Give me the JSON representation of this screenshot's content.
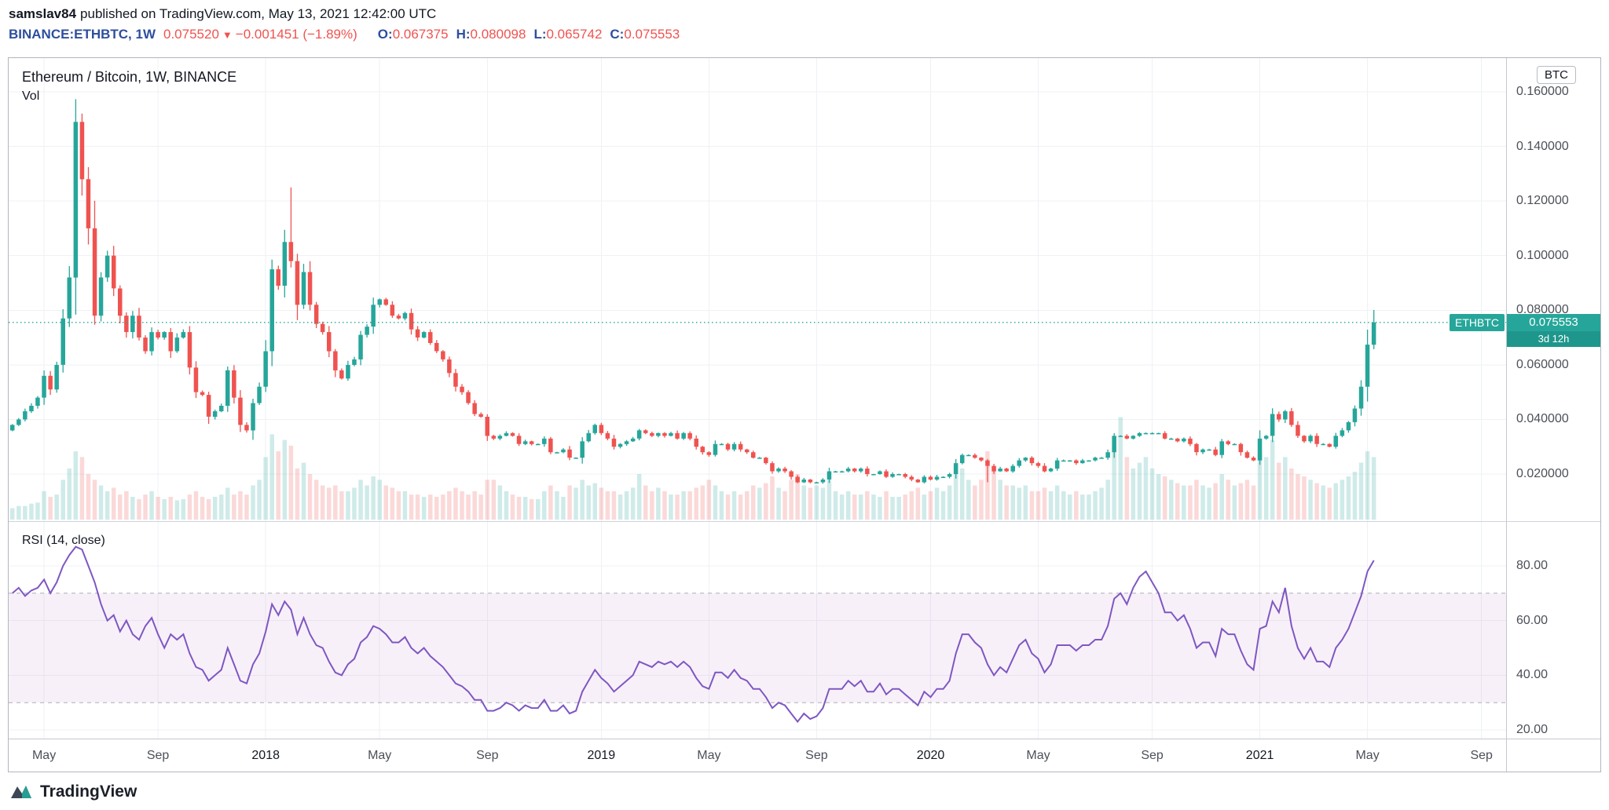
{
  "header": {
    "username": "samslav84",
    "published": "published on TradingView.com, May 13, 2021 12:42:00 UTC",
    "symbol": "BINANCE:ETHBTC, 1W",
    "last_price": "0.075520",
    "direction_icon": "▼",
    "change": "−0.001451 (−1.89%)",
    "ohlc": [
      {
        "label": "O:",
        "value": "0.067375"
      },
      {
        "label": "H:",
        "value": "0.080098"
      },
      {
        "label": "L:",
        "value": "0.065742"
      },
      {
        "label": "C:",
        "value": "0.075553"
      }
    ]
  },
  "chart": {
    "title": "Ethereum / Bitcoin, 1W, BINANCE",
    "vol_label": "Vol",
    "currency_badge": "BTC",
    "rsi_label": "RSI (14, close)",
    "price_flag": {
      "symbol": "ETHBTC",
      "price": "0.075553",
      "countdown": "3d 12h"
    }
  },
  "footer": {
    "brand": "TradingView"
  },
  "colors": {
    "up": "#26a69a",
    "down": "#ef5350",
    "vol_up": "rgba(38,166,154,0.22)",
    "vol_down": "rgba(239,83,80,0.22)",
    "grid": "#eef1f6",
    "rsi": "#7e57c2",
    "rsi_band": "rgba(156,39,176,0.07)",
    "rsi_band_border": "rgba(120,123,134,0.6)",
    "symbol_text": "#2e4e9e",
    "negative_text": "#ef5350"
  },
  "chart_data": {
    "type": "candlestick+volume+rsi",
    "title": "Ethereum / Bitcoin, 1W, BINANCE",
    "symbol": "BINANCE:ETHBTC",
    "timeframe": "1W",
    "start_date": "2017-04-03",
    "end_date": "2021-05-10",
    "current_price": 0.075553,
    "price_axis_ticks": [
      0.16,
      0.14,
      0.12,
      0.1,
      0.08,
      0.06,
      0.04,
      0.02
    ],
    "price_axis_labels": [
      "0.160000",
      "0.140000",
      "0.120000",
      "0.100000",
      "0.080000",
      "0.060000",
      "0.040000",
      "0.020000"
    ],
    "rsi_axis_ticks": [
      80,
      60,
      40,
      20
    ],
    "rsi_axis_labels": [
      "80.00",
      "60.00",
      "40.00",
      "20.00"
    ],
    "rsi_band": [
      30,
      70
    ],
    "ylim": [
      0.003,
      0.1635
    ],
    "rsi_ylim": [
      15,
      95
    ],
    "time_ticks": [
      {
        "label": "May",
        "week": 5
      },
      {
        "label": "Sep",
        "week": 23
      },
      {
        "label": "2018",
        "week": 40,
        "year": true
      },
      {
        "label": "May",
        "week": 58
      },
      {
        "label": "Sep",
        "week": 75
      },
      {
        "label": "2019",
        "week": 93,
        "year": true
      },
      {
        "label": "May",
        "week": 110
      },
      {
        "label": "Sep",
        "week": 127
      },
      {
        "label": "2020",
        "week": 145,
        "year": true
      },
      {
        "label": "May",
        "week": 162
      },
      {
        "label": "Sep",
        "week": 180
      },
      {
        "label": "2021",
        "week": 197,
        "year": true
      },
      {
        "label": "May",
        "week": 214
      },
      {
        "label": "Sep",
        "week": 232
      }
    ],
    "first_open": 0.036,
    "closes": [
      0.038,
      0.04,
      0.043,
      0.045,
      0.048,
      0.056,
      0.051,
      0.06,
      0.077,
      0.092,
      0.149,
      0.128,
      0.11,
      0.078,
      0.092,
      0.1,
      0.088,
      0.078,
      0.072,
      0.078,
      0.07,
      0.065,
      0.072,
      0.07,
      0.072,
      0.065,
      0.07,
      0.072,
      0.059,
      0.05,
      0.049,
      0.041,
      0.043,
      0.045,
      0.058,
      0.048,
      0.038,
      0.036,
      0.046,
      0.052,
      0.065,
      0.095,
      0.089,
      0.105,
      0.098,
      0.082,
      0.094,
      0.082,
      0.075,
      0.072,
      0.065,
      0.058,
      0.055,
      0.06,
      0.062,
      0.071,
      0.074,
      0.082,
      0.084,
      0.082,
      0.078,
      0.077,
      0.079,
      0.073,
      0.07,
      0.072,
      0.068,
      0.065,
      0.062,
      0.057,
      0.052,
      0.05,
      0.046,
      0.042,
      0.041,
      0.034,
      0.033,
      0.034,
      0.035,
      0.034,
      0.031,
      0.032,
      0.031,
      0.031,
      0.033,
      0.028,
      0.028,
      0.029,
      0.026,
      0.026,
      0.032,
      0.035,
      0.038,
      0.035,
      0.033,
      0.03,
      0.031,
      0.032,
      0.033,
      0.036,
      0.035,
      0.034,
      0.035,
      0.034,
      0.035,
      0.033,
      0.035,
      0.033,
      0.03,
      0.028,
      0.027,
      0.031,
      0.031,
      0.029,
      0.031,
      0.029,
      0.028,
      0.026,
      0.026,
      0.024,
      0.021,
      0.022,
      0.021,
      0.019,
      0.017,
      0.018,
      0.017,
      0.017,
      0.018,
      0.021,
      0.021,
      0.021,
      0.022,
      0.021,
      0.022,
      0.02,
      0.02,
      0.021,
      0.019,
      0.02,
      0.02,
      0.019,
      0.018,
      0.017,
      0.019,
      0.018,
      0.019,
      0.019,
      0.02,
      0.024,
      0.027,
      0.027,
      0.026,
      0.025,
      0.023,
      0.021,
      0.022,
      0.021,
      0.023,
      0.025,
      0.026,
      0.024,
      0.023,
      0.021,
      0.022,
      0.025,
      0.025,
      0.025,
      0.024,
      0.025,
      0.025,
      0.026,
      0.026,
      0.028,
      0.034,
      0.034,
      0.033,
      0.034,
      0.035,
      0.035,
      0.035,
      0.035,
      0.033,
      0.033,
      0.032,
      0.033,
      0.031,
      0.028,
      0.029,
      0.029,
      0.027,
      0.032,
      0.031,
      0.031,
      0.028,
      0.026,
      0.025,
      0.033,
      0.034,
      0.042,
      0.04,
      0.043,
      0.038,
      0.034,
      0.032,
      0.034,
      0.031,
      0.031,
      0.03,
      0.034,
      0.036,
      0.039,
      0.044,
      0.052,
      0.0674,
      0.075553
    ],
    "wick_overrides": {
      "10": {
        "h": 0.1573
      },
      "11": {
        "h": 0.152
      },
      "44": {
        "h": 0.125
      },
      "154": {
        "l": 0.017
      },
      "215": {
        "h": 0.080098,
        "l": 0.065742
      }
    },
    "volumes": [
      10,
      12,
      12,
      14,
      15,
      25,
      20,
      22,
      35,
      45,
      60,
      55,
      40,
      35,
      30,
      25,
      28,
      22,
      25,
      20,
      18,
      22,
      25,
      20,
      18,
      20,
      17,
      18,
      22,
      25,
      20,
      18,
      20,
      22,
      28,
      22,
      25,
      22,
      30,
      35,
      55,
      75,
      60,
      70,
      65,
      45,
      50,
      40,
      35,
      30,
      28,
      30,
      25,
      25,
      28,
      35,
      30,
      38,
      35,
      30,
      28,
      25,
      25,
      22,
      22,
      20,
      22,
      20,
      22,
      25,
      28,
      25,
      22,
      25,
      22,
      35,
      35,
      30,
      25,
      22,
      20,
      20,
      18,
      18,
      25,
      30,
      25,
      20,
      30,
      28,
      35,
      30,
      32,
      28,
      25,
      25,
      22,
      25,
      28,
      40,
      30,
      25,
      28,
      25,
      22,
      22,
      25,
      25,
      28,
      30,
      35,
      30,
      25,
      22,
      25,
      22,
      25,
      30,
      28,
      32,
      38,
      28,
      25,
      35,
      40,
      30,
      28,
      30,
      28,
      35,
      25,
      22,
      25,
      22,
      22,
      25,
      22,
      20,
      25,
      20,
      20,
      22,
      25,
      28,
      22,
      25,
      28,
      25,
      30,
      40,
      45,
      35,
      30,
      35,
      60,
      45,
      35,
      30,
      30,
      28,
      30,
      25,
      25,
      28,
      25,
      30,
      25,
      22,
      25,
      22,
      22,
      25,
      28,
      35,
      65,
      90,
      55,
      45,
      50,
      55,
      45,
      40,
      38,
      35,
      32,
      30,
      30,
      35,
      30,
      28,
      32,
      40,
      35,
      30,
      32,
      35,
      30,
      60,
      55,
      70,
      50,
      55,
      45,
      40,
      38,
      35,
      32,
      30,
      28,
      32,
      35,
      38,
      42,
      50,
      60,
      55
    ],
    "rsi": [
      70,
      72,
      69,
      71,
      72,
      75,
      70,
      74,
      80,
      84,
      87,
      86,
      80,
      74,
      66,
      60,
      62,
      56,
      60,
      55,
      53,
      58,
      61,
      55,
      50,
      55,
      53,
      55,
      48,
      43,
      42,
      38,
      40,
      42,
      50,
      44,
      38,
      37,
      44,
      48,
      56,
      66,
      62,
      67,
      64,
      55,
      61,
      55,
      51,
      50,
      45,
      41,
      40,
      44,
      46,
      52,
      54,
      58,
      57,
      55,
      52,
      52,
      54,
      50,
      48,
      50,
      47,
      45,
      43,
      40,
      37,
      36,
      34,
      31,
      31,
      27,
      27,
      28,
      30,
      29,
      27,
      29,
      28,
      28,
      31,
      27,
      27,
      29,
      26,
      27,
      34,
      38,
      42,
      39,
      37,
      34,
      36,
      38,
      40,
      45,
      44,
      43,
      45,
      44,
      45,
      43,
      45,
      43,
      39,
      36,
      35,
      41,
      41,
      39,
      42,
      39,
      38,
      35,
      35,
      32,
      28,
      30,
      29,
      26,
      23,
      26,
      24,
      25,
      28,
      35,
      35,
      35,
      38,
      36,
      38,
      34,
      34,
      37,
      33,
      35,
      35,
      33,
      31,
      29,
      34,
      32,
      35,
      35,
      38,
      48,
      55,
      55,
      52,
      50,
      44,
      40,
      43,
      41,
      46,
      51,
      53,
      48,
      46,
      41,
      44,
      51,
      51,
      51,
      49,
      51,
      51,
      53,
      53,
      58,
      68,
      70,
      66,
      72,
      76,
      78,
      74,
      70,
      63,
      63,
      60,
      62,
      57,
      50,
      52,
      52,
      47,
      57,
      55,
      55,
      49,
      44,
      42,
      57,
      58,
      67,
      63,
      72,
      58,
      50,
      46,
      50,
      45,
      45,
      43,
      50,
      53,
      57,
      63,
      69,
      78,
      82
    ]
  }
}
